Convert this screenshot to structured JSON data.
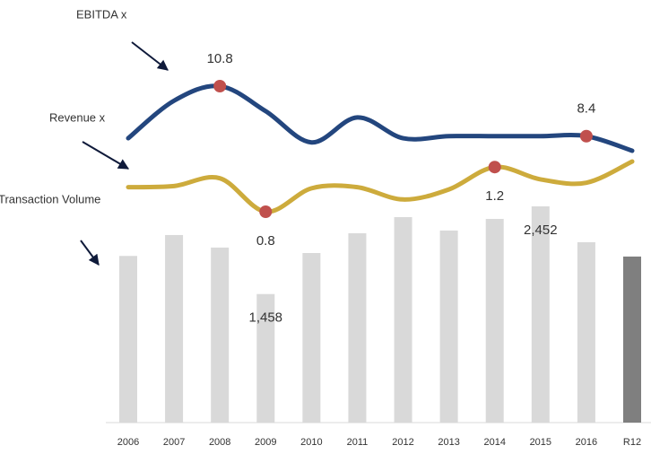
{
  "chart_data": {
    "type": "bar",
    "categories": [
      "2006",
      "2007",
      "2008",
      "2009",
      "2010",
      "2011",
      "2012",
      "2013",
      "2014",
      "2015",
      "2016",
      "R12"
    ],
    "series": [
      {
        "name": "EBITDA x",
        "type": "line",
        "color": "#23467e",
        "values": [
          8.3,
          10.1,
          10.8,
          9.6,
          8.1,
          9.3,
          8.3,
          8.4,
          8.4,
          8.4,
          8.4,
          7.7
        ],
        "value_labels": [
          null,
          null,
          "10.8",
          null,
          null,
          null,
          null,
          null,
          null,
          null,
          "8.4",
          null
        ]
      },
      {
        "name": "Revenue x",
        "type": "line",
        "color": "#cdab3c",
        "values": [
          1.02,
          1.03,
          1.1,
          0.8,
          1.01,
          1.02,
          0.91,
          1.0,
          1.2,
          1.09,
          1.06,
          1.25
        ],
        "value_labels": [
          null,
          null,
          null,
          "0.8",
          null,
          null,
          null,
          null,
          "1.2",
          null,
          null,
          null
        ]
      },
      {
        "name": "Transaction Volume",
        "type": "bar",
        "colors": [
          "#d9d9d9",
          "#d9d9d9",
          "#d9d9d9",
          "#d9d9d9",
          "#d9d9d9",
          "#d9d9d9",
          "#d9d9d9",
          "#d9d9d9",
          "#d9d9d9",
          "#d9d9d9",
          "#d9d9d9",
          "#7f7f7f"
        ],
        "values": [
          1890,
          2127,
          1985,
          1458,
          1923,
          2147,
          2330,
          2178,
          2310,
          2452,
          2046,
          1883
        ],
        "value_labels": [
          null,
          null,
          null,
          "1,458",
          null,
          null,
          null,
          null,
          null,
          "2,452",
          null,
          null
        ]
      }
    ],
    "marker_color": "#c0504d"
  }
}
